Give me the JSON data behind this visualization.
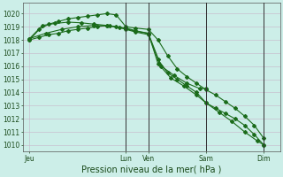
{
  "title": "Pression niveau de la mer( hPa )",
  "background_color": "#cceee8",
  "grid_color": "#c8b4c8",
  "line_color": "#1a6b1a",
  "ylim": [
    1009.5,
    1020.8
  ],
  "yticks": [
    1010,
    1011,
    1012,
    1013,
    1014,
    1015,
    1016,
    1017,
    1018,
    1019,
    1020
  ],
  "xtick_labels": [
    "Jeu",
    "Lun",
    "Ven",
    "Sam",
    "Dim"
  ],
  "xtick_positions": [
    0,
    30,
    37,
    55,
    73
  ],
  "vline_positions": [
    30,
    37,
    55,
    73
  ],
  "xlim": [
    -2,
    78
  ],
  "series1_x": [
    0,
    3,
    6,
    9,
    12,
    15,
    18,
    21,
    24,
    27,
    30,
    33,
    37,
    40,
    43,
    46,
    49,
    52,
    55,
    58,
    61,
    64,
    67,
    70,
    73
  ],
  "series1_y": [
    1018.0,
    1018.8,
    1019.2,
    1019.4,
    1019.6,
    1019.7,
    1019.8,
    1019.9,
    1020.0,
    1019.9,
    1019.0,
    1018.9,
    1018.8,
    1018.0,
    1016.8,
    1015.8,
    1015.2,
    1014.7,
    1014.2,
    1013.8,
    1013.3,
    1012.8,
    1012.2,
    1011.5,
    1010.5
  ],
  "series2_x": [
    0,
    3,
    6,
    9,
    12,
    15,
    18,
    21,
    24,
    27,
    30,
    33,
    37,
    40,
    43,
    46,
    49,
    52,
    55,
    58,
    61,
    64,
    67,
    70,
    73
  ],
  "series2_y": [
    1018.0,
    1018.2,
    1018.4,
    1018.5,
    1018.7,
    1018.8,
    1018.9,
    1019.0,
    1019.1,
    1019.0,
    1018.8,
    1018.6,
    1018.4,
    1016.5,
    1015.5,
    1015.0,
    1014.5,
    1014.0,
    1013.2,
    1012.8,
    1012.4,
    1012.0,
    1011.5,
    1010.8,
    1010.0
  ],
  "series3_x": [
    0,
    4,
    8,
    12,
    16,
    20,
    24,
    28,
    30,
    33,
    37,
    40,
    44,
    48,
    52,
    55,
    59,
    63,
    67,
    71,
    73
  ],
  "series3_y": [
    1018.1,
    1019.1,
    1019.25,
    1019.35,
    1019.3,
    1019.2,
    1019.1,
    1018.95,
    1018.85,
    1018.65,
    1018.5,
    1016.2,
    1015.1,
    1014.5,
    1013.8,
    1013.2,
    1012.5,
    1011.8,
    1011.0,
    1010.3,
    1010.0
  ],
  "series4_x": [
    0,
    5,
    10,
    15,
    20,
    25,
    30,
    33,
    37,
    41,
    45,
    49,
    53,
    55
  ],
  "series4_y": [
    1018.1,
    1018.5,
    1018.8,
    1019.0,
    1019.1,
    1019.05,
    1018.9,
    1018.7,
    1018.5,
    1016.0,
    1015.3,
    1014.7,
    1014.3,
    1014.3
  ],
  "tick_fontsize": 5.5,
  "title_fontsize": 7.0
}
